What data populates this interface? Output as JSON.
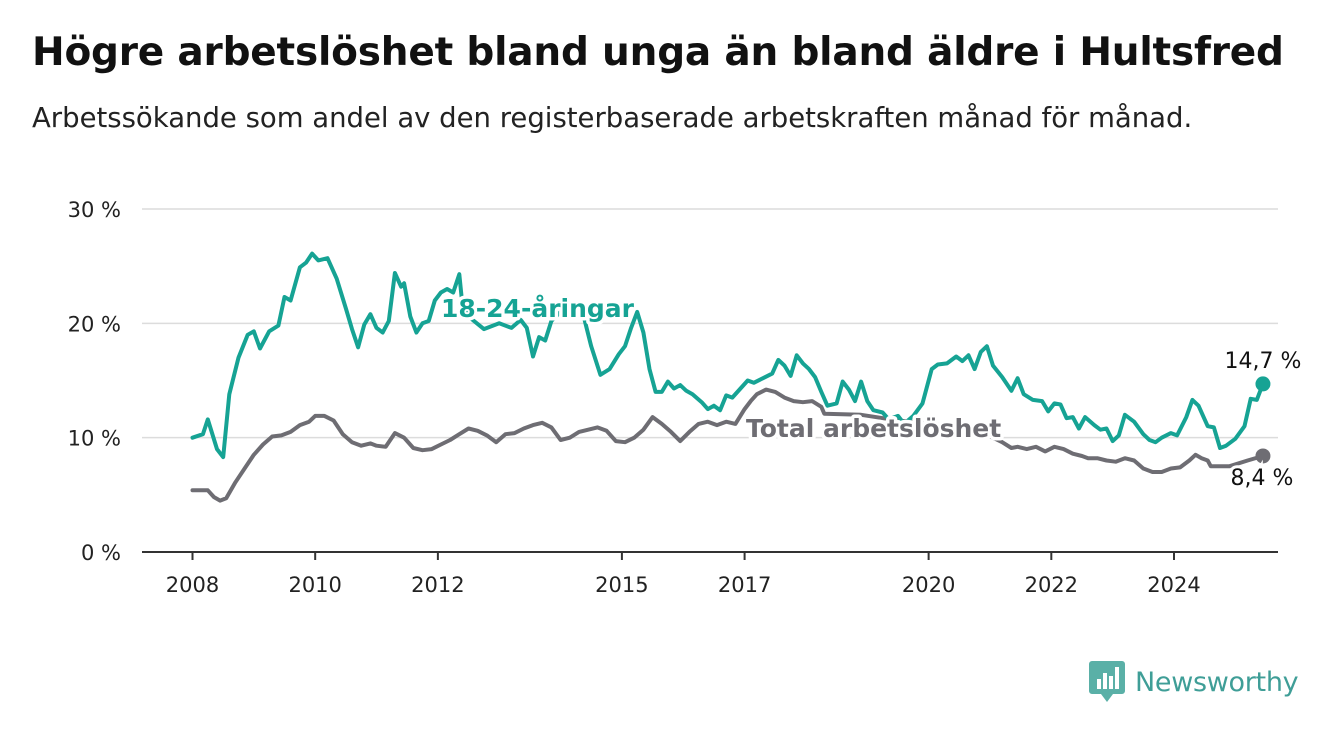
{
  "title": "Högre arbetslöshet bland unga än bland äldre i Hultsfred",
  "subtitle": "Arbetssökande som andel av den registerbaserade arbetskraften månad för månad.",
  "brand": {
    "name": "Newsworthy"
  },
  "colors": {
    "youth": "#16a394",
    "total": "#6e6d73",
    "grid": "#dcdcdc",
    "axis": "#333333"
  },
  "chart_data": {
    "type": "line",
    "title": "Högre arbetslöshet bland unga än bland äldre i Hultsfred",
    "xlabel": "",
    "ylabel": "",
    "ylim": [
      0,
      30
    ],
    "xlim": [
      2008.0,
      2025.8
    ],
    "y_ticks": [
      0,
      10,
      20,
      30
    ],
    "y_tick_labels": [
      "0 %",
      "10 %",
      "20 %",
      "30 %"
    ],
    "x_ticks": [
      2008,
      2010,
      2012,
      2015,
      2017,
      2020,
      2022,
      2024
    ],
    "x_tick_labels": [
      "2008",
      "2010",
      "2012",
      "2015",
      "2017",
      "2020",
      "2022",
      "2024"
    ],
    "grid": true,
    "legend": "inline labels",
    "series": [
      {
        "name": "18-24-åringar",
        "end_label": "14,7 %",
        "points": [
          [
            2008.0,
            10.0
          ],
          [
            2008.17,
            10.3
          ],
          [
            2008.25,
            11.6
          ],
          [
            2008.4,
            9.0
          ],
          [
            2008.5,
            8.3
          ],
          [
            2008.6,
            13.8
          ],
          [
            2008.75,
            17.0
          ],
          [
            2008.9,
            19.0
          ],
          [
            2009.0,
            19.3
          ],
          [
            2009.1,
            17.8
          ],
          [
            2009.25,
            19.3
          ],
          [
            2009.4,
            19.8
          ],
          [
            2009.5,
            22.3
          ],
          [
            2009.6,
            22.0
          ],
          [
            2009.75,
            24.9
          ],
          [
            2009.85,
            25.3
          ],
          [
            2009.95,
            26.1
          ],
          [
            2010.05,
            25.5
          ],
          [
            2010.2,
            25.7
          ],
          [
            2010.35,
            23.9
          ],
          [
            2010.5,
            21.3
          ],
          [
            2010.6,
            19.5
          ],
          [
            2010.7,
            17.9
          ],
          [
            2010.8,
            19.9
          ],
          [
            2010.9,
            20.8
          ],
          [
            2011.0,
            19.6
          ],
          [
            2011.1,
            19.2
          ],
          [
            2011.2,
            20.2
          ],
          [
            2011.3,
            24.4
          ],
          [
            2011.4,
            23.2
          ],
          [
            2011.45,
            23.5
          ],
          [
            2011.55,
            20.6
          ],
          [
            2011.65,
            19.2
          ],
          [
            2011.75,
            20.0
          ],
          [
            2011.85,
            20.2
          ],
          [
            2011.95,
            22.0
          ],
          [
            2012.05,
            22.7
          ],
          [
            2012.15,
            23.0
          ],
          [
            2012.25,
            22.7
          ],
          [
            2012.35,
            24.3
          ],
          [
            2012.4,
            21.6
          ],
          [
            2012.5,
            20.6
          ],
          [
            2012.75,
            19.5
          ],
          [
            2013.0,
            20.0
          ],
          [
            2013.2,
            19.6
          ],
          [
            2013.35,
            20.3
          ],
          [
            2013.45,
            19.6
          ],
          [
            2013.55,
            17.1
          ],
          [
            2013.65,
            18.8
          ],
          [
            2013.75,
            18.5
          ],
          [
            2013.85,
            20.2
          ],
          [
            2014.0,
            21.0
          ],
          [
            2014.2,
            20.6
          ],
          [
            2014.35,
            21.2
          ],
          [
            2014.5,
            18.0
          ],
          [
            2014.65,
            15.5
          ],
          [
            2014.8,
            16.0
          ],
          [
            2014.95,
            17.3
          ],
          [
            2015.05,
            18.0
          ],
          [
            2015.15,
            19.6
          ],
          [
            2015.25,
            21.0
          ],
          [
            2015.35,
            19.2
          ],
          [
            2015.45,
            16.0
          ],
          [
            2015.55,
            14.0
          ],
          [
            2015.65,
            14.0
          ],
          [
            2015.75,
            14.9
          ],
          [
            2015.85,
            14.3
          ],
          [
            2015.95,
            14.6
          ],
          [
            2016.05,
            14.1
          ],
          [
            2016.15,
            13.8
          ],
          [
            2016.3,
            13.1
          ],
          [
            2016.4,
            12.5
          ],
          [
            2016.5,
            12.8
          ],
          [
            2016.6,
            12.4
          ],
          [
            2016.7,
            13.7
          ],
          [
            2016.8,
            13.5
          ],
          [
            2016.95,
            14.4
          ],
          [
            2017.05,
            15.0
          ],
          [
            2017.15,
            14.8
          ],
          [
            2017.3,
            15.2
          ],
          [
            2017.45,
            15.6
          ],
          [
            2017.55,
            16.8
          ],
          [
            2017.65,
            16.3
          ],
          [
            2017.75,
            15.4
          ],
          [
            2017.85,
            17.2
          ],
          [
            2017.95,
            16.5
          ],
          [
            2018.05,
            16.0
          ],
          [
            2018.15,
            15.3
          ],
          [
            2018.25,
            14.0
          ],
          [
            2018.35,
            12.8
          ],
          [
            2018.5,
            13.0
          ],
          [
            2018.6,
            14.9
          ],
          [
            2018.7,
            14.2
          ],
          [
            2018.8,
            13.2
          ],
          [
            2018.9,
            14.9
          ],
          [
            2019.0,
            13.2
          ],
          [
            2019.1,
            12.4
          ],
          [
            2019.25,
            12.2
          ],
          [
            2019.35,
            11.6
          ],
          [
            2019.5,
            11.9
          ],
          [
            2019.6,
            11.2
          ],
          [
            2019.75,
            11.9
          ],
          [
            2019.9,
            13.0
          ],
          [
            2020.05,
            16.0
          ],
          [
            2020.15,
            16.4
          ],
          [
            2020.3,
            16.5
          ],
          [
            2020.45,
            17.1
          ],
          [
            2020.55,
            16.7
          ],
          [
            2020.65,
            17.2
          ],
          [
            2020.75,
            16.0
          ],
          [
            2020.85,
            17.5
          ],
          [
            2020.95,
            18.0
          ],
          [
            2021.05,
            16.3
          ],
          [
            2021.2,
            15.3
          ],
          [
            2021.35,
            14.1
          ],
          [
            2021.45,
            15.2
          ],
          [
            2021.55,
            13.8
          ],
          [
            2021.7,
            13.3
          ],
          [
            2021.85,
            13.2
          ],
          [
            2021.95,
            12.3
          ],
          [
            2022.05,
            13.0
          ],
          [
            2022.15,
            12.9
          ],
          [
            2022.25,
            11.7
          ],
          [
            2022.35,
            11.8
          ],
          [
            2022.45,
            10.8
          ],
          [
            2022.55,
            11.8
          ],
          [
            2022.7,
            11.1
          ],
          [
            2022.8,
            10.7
          ],
          [
            2022.9,
            10.8
          ],
          [
            2023.0,
            9.7
          ],
          [
            2023.1,
            10.2
          ],
          [
            2023.2,
            12.0
          ],
          [
            2023.35,
            11.4
          ],
          [
            2023.5,
            10.3
          ],
          [
            2023.6,
            9.8
          ],
          [
            2023.7,
            9.6
          ],
          [
            2023.8,
            10.0
          ],
          [
            2023.95,
            10.4
          ],
          [
            2024.05,
            10.2
          ],
          [
            2024.2,
            11.8
          ],
          [
            2024.3,
            13.3
          ],
          [
            2024.4,
            12.8
          ],
          [
            2024.55,
            11.0
          ],
          [
            2024.65,
            10.9
          ],
          [
            2024.75,
            9.1
          ],
          [
            2024.85,
            9.3
          ],
          [
            2025.0,
            9.9
          ],
          [
            2025.15,
            11.0
          ],
          [
            2025.25,
            13.4
          ],
          [
            2025.35,
            13.3
          ],
          [
            2025.45,
            14.7
          ]
        ]
      },
      {
        "name": "Total arbetslöshet",
        "end_label": "8,4 %",
        "points": [
          [
            2008.0,
            5.4
          ],
          [
            2008.25,
            5.4
          ],
          [
            2008.35,
            4.8
          ],
          [
            2008.45,
            4.5
          ],
          [
            2008.55,
            4.7
          ],
          [
            2008.7,
            6.1
          ],
          [
            2008.85,
            7.3
          ],
          [
            2009.0,
            8.5
          ],
          [
            2009.15,
            9.4
          ],
          [
            2009.3,
            10.1
          ],
          [
            2009.45,
            10.2
          ],
          [
            2009.6,
            10.5
          ],
          [
            2009.75,
            11.1
          ],
          [
            2009.9,
            11.4
          ],
          [
            2010.0,
            11.9
          ],
          [
            2010.15,
            11.9
          ],
          [
            2010.3,
            11.5
          ],
          [
            2010.45,
            10.3
          ],
          [
            2010.6,
            9.6
          ],
          [
            2010.75,
            9.3
          ],
          [
            2010.9,
            9.5
          ],
          [
            2011.0,
            9.3
          ],
          [
            2011.15,
            9.2
          ],
          [
            2011.3,
            10.4
          ],
          [
            2011.45,
            10.0
          ],
          [
            2011.6,
            9.1
          ],
          [
            2011.75,
            8.9
          ],
          [
            2011.9,
            9.0
          ],
          [
            2012.05,
            9.4
          ],
          [
            2012.2,
            9.8
          ],
          [
            2012.35,
            10.3
          ],
          [
            2012.5,
            10.8
          ],
          [
            2012.65,
            10.6
          ],
          [
            2012.8,
            10.2
          ],
          [
            2012.95,
            9.6
          ],
          [
            2013.1,
            10.3
          ],
          [
            2013.25,
            10.4
          ],
          [
            2013.4,
            10.8
          ],
          [
            2013.55,
            11.1
          ],
          [
            2013.7,
            11.3
          ],
          [
            2013.85,
            10.9
          ],
          [
            2014.0,
            9.8
          ],
          [
            2014.15,
            10.0
          ],
          [
            2014.3,
            10.5
          ],
          [
            2014.45,
            10.7
          ],
          [
            2014.6,
            10.9
          ],
          [
            2014.75,
            10.6
          ],
          [
            2014.9,
            9.7
          ],
          [
            2015.05,
            9.6
          ],
          [
            2015.2,
            10.0
          ],
          [
            2015.35,
            10.7
          ],
          [
            2015.5,
            11.8
          ],
          [
            2015.65,
            11.2
          ],
          [
            2015.8,
            10.5
          ],
          [
            2015.95,
            9.7
          ],
          [
            2016.1,
            10.5
          ],
          [
            2016.25,
            11.2
          ],
          [
            2016.4,
            11.4
          ],
          [
            2016.55,
            11.1
          ],
          [
            2016.7,
            11.4
          ],
          [
            2016.85,
            11.2
          ],
          [
            2017.0,
            12.5
          ],
          [
            2017.1,
            13.2
          ],
          [
            2017.2,
            13.8
          ],
          [
            2017.35,
            14.2
          ],
          [
            2017.5,
            14.0
          ],
          [
            2017.65,
            13.5
          ],
          [
            2017.8,
            13.2
          ],
          [
            2017.95,
            13.1
          ],
          [
            2018.1,
            13.2
          ],
          [
            2018.25,
            12.7
          ],
          [
            2018.3,
            12.1
          ],
          [
            2018.9,
            12.0
          ],
          [
            2019.5,
            11.5
          ],
          [
            2020.1,
            11.2
          ],
          [
            2020.6,
            10.8
          ],
          [
            2021.05,
            10.0
          ],
          [
            2021.2,
            9.6
          ],
          [
            2021.35,
            9.1
          ],
          [
            2021.45,
            9.2
          ],
          [
            2021.6,
            9.0
          ],
          [
            2021.75,
            9.2
          ],
          [
            2021.9,
            8.8
          ],
          [
            2022.05,
            9.2
          ],
          [
            2022.2,
            9.0
          ],
          [
            2022.35,
            8.6
          ],
          [
            2022.5,
            8.4
          ],
          [
            2022.6,
            8.2
          ],
          [
            2022.75,
            8.2
          ],
          [
            2022.9,
            8.0
          ],
          [
            2023.05,
            7.9
          ],
          [
            2023.2,
            8.2
          ],
          [
            2023.35,
            8.0
          ],
          [
            2023.5,
            7.3
          ],
          [
            2023.65,
            7.0
          ],
          [
            2023.8,
            7.0
          ],
          [
            2023.95,
            7.3
          ],
          [
            2024.1,
            7.4
          ],
          [
            2024.25,
            8.0
          ],
          [
            2024.35,
            8.5
          ],
          [
            2024.45,
            8.2
          ],
          [
            2024.55,
            8.0
          ],
          [
            2024.6,
            7.5
          ],
          [
            2024.9,
            7.5
          ],
          [
            2025.2,
            8.0
          ],
          [
            2025.45,
            8.4
          ]
        ]
      }
    ]
  }
}
